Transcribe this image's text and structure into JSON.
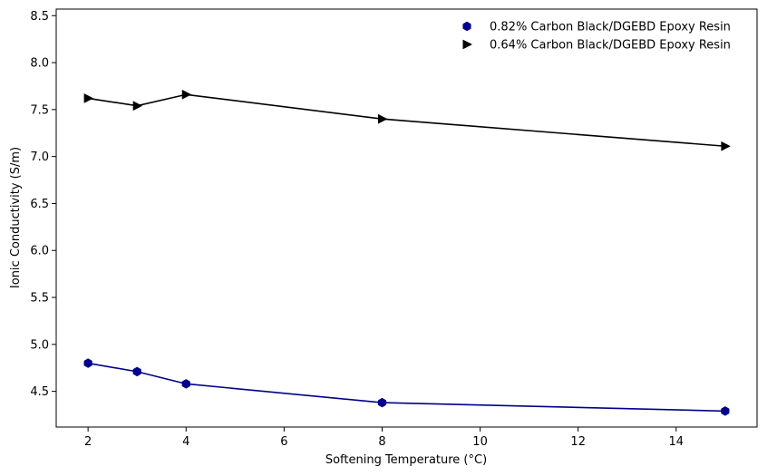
{
  "chart_data": {
    "type": "line",
    "title": "",
    "xlabel": "Softening Temperature (°C)",
    "ylabel": "Ionic Conductivity (S/m)",
    "xlim": [
      1.35,
      15.65
    ],
    "ylim": [
      4.12,
      8.57
    ],
    "xticks": [
      2,
      4,
      6,
      8,
      10,
      12,
      14
    ],
    "yticks": [
      4.5,
      5.0,
      5.5,
      6.0,
      6.5,
      7.0,
      7.5,
      8.0,
      8.5
    ],
    "xtick_labels": [
      "2",
      "4",
      "6",
      "8",
      "10",
      "12",
      "14"
    ],
    "ytick_labels": [
      "4.5",
      "5.0",
      "5.5",
      "6.0",
      "6.5",
      "7.0",
      "7.5",
      "8.0",
      "8.5"
    ],
    "grid": false,
    "legend_position": "top-right",
    "series": [
      {
        "name": "0.82% Carbon Black/DGEBD Epoxy Resin",
        "marker": "hexagon",
        "color": "#00008b",
        "x": [
          2,
          3,
          4,
          8,
          15
        ],
        "y": [
          4.8,
          4.71,
          4.58,
          4.38,
          4.29
        ]
      },
      {
        "name": "0.64% Carbon Black/DGEBD Epoxy Resin",
        "marker": "triangle-right",
        "color": "#000000",
        "x": [
          2,
          3,
          4,
          8,
          15
        ],
        "y": [
          7.62,
          7.54,
          7.66,
          7.4,
          7.11
        ]
      }
    ]
  }
}
